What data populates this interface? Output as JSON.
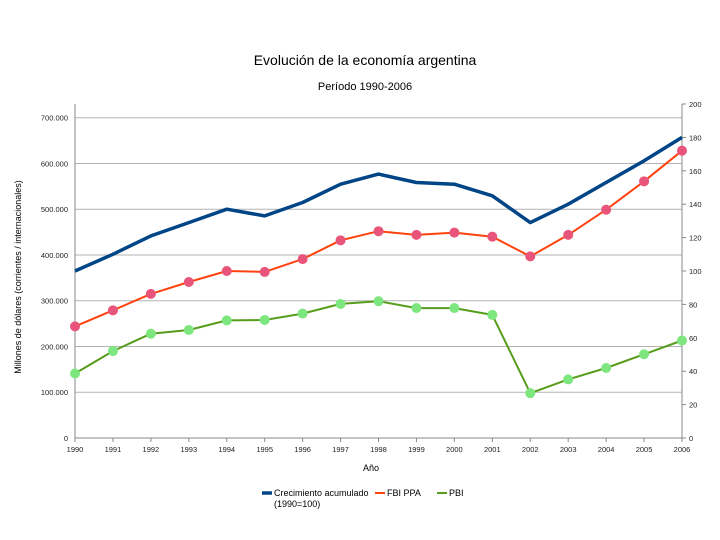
{
  "chart_data": {
    "type": "line",
    "title": "Evolución de la economía argentina",
    "subtitle": "Período 1990-2006",
    "xlabel": "Año",
    "ylabel": "Millones de dólares (corrientes / internacionales)",
    "x": [
      "1990",
      "1991",
      "1992",
      "1993",
      "1994",
      "1995",
      "1996",
      "1997",
      "1998",
      "1999",
      "2000",
      "2001",
      "2002",
      "2003",
      "2004",
      "2005",
      "2006"
    ],
    "ylim_left": [
      0,
      730000
    ],
    "yticks_left": [
      "0",
      "100.000",
      "200.000",
      "300.000",
      "400.000",
      "500.000",
      "600.000",
      "700.000"
    ],
    "yticks_left_values": [
      0,
      100000,
      200000,
      300000,
      400000,
      500000,
      600000,
      700000
    ],
    "ylim_right": [
      0,
      200
    ],
    "yticks_right": [
      "0",
      "20",
      "40",
      "60",
      "80",
      "100",
      "120",
      "140",
      "160",
      "180",
      "200"
    ],
    "yticks_right_values": [
      0,
      20,
      40,
      60,
      80,
      100,
      120,
      140,
      160,
      180,
      200
    ],
    "grid": true,
    "legend_position": "bottom",
    "series": [
      {
        "name": "Crecimiento acumulado (1990=100)",
        "legend_lines": [
          "Crecimiento acumulado",
          "(1990=100)"
        ],
        "axis": "right",
        "color": "#004586",
        "marker": false,
        "values": [
          100,
          110,
          121,
          129,
          137,
          133,
          141,
          152,
          158,
          153,
          152,
          145,
          129,
          140,
          153,
          166,
          180
        ]
      },
      {
        "name": "FBI PPA",
        "legend_lines": [
          "FBI PPA"
        ],
        "axis": "left",
        "color": "#ff420e",
        "marker": true,
        "marker_color": "#e8547a",
        "values": [
          244000,
          279000,
          315000,
          341000,
          365000,
          363000,
          391000,
          432000,
          452000,
          444000,
          449000,
          440000,
          397000,
          444000,
          499000,
          561000,
          628000
        ]
      },
      {
        "name": "PBI",
        "legend_lines": [
          "PBI"
        ],
        "axis": "left",
        "color": "#579d1c",
        "marker": true,
        "marker_color": "#7ee67e",
        "values": [
          141000,
          190000,
          228000,
          236000,
          257000,
          258000,
          272000,
          293000,
          299000,
          284000,
          284000,
          269000,
          98000,
          128000,
          153000,
          183000,
          213000
        ]
      }
    ]
  }
}
